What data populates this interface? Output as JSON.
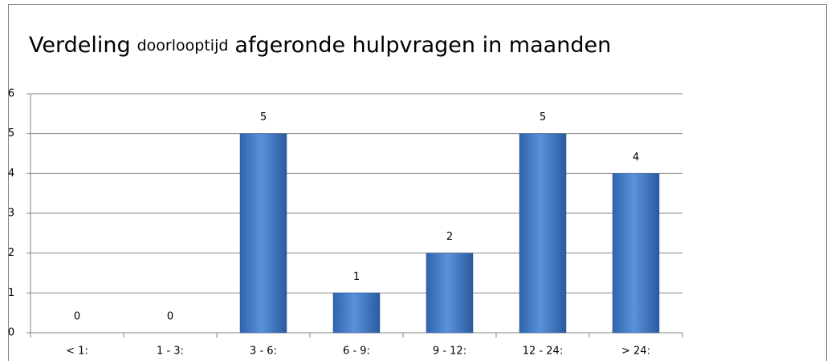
{
  "chart_data": {
    "type": "bar",
    "title": [
      "Verdeling",
      "doorlooptijd",
      "afgeronde hulpvragen in maanden"
    ],
    "categories": [
      "< 1:",
      "1 - 3:",
      "3 - 6:",
      "6 - 9:",
      "9 - 12:",
      "12 - 24:",
      "> 24:"
    ],
    "values": [
      0,
      0,
      5,
      1,
      2,
      5,
      4
    ],
    "color": "#3f78c4",
    "ylim": [
      0,
      6
    ],
    "yticks": [
      0,
      1,
      2,
      3,
      4,
      5,
      6
    ],
    "grid": true
  }
}
